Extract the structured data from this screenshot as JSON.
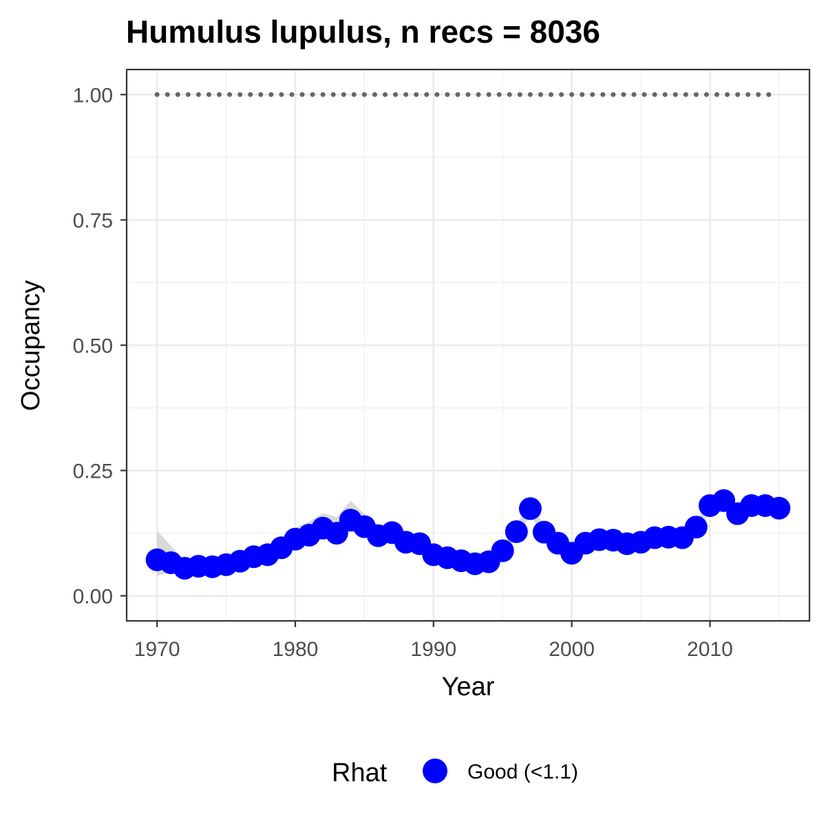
{
  "chart_data": {
    "type": "line",
    "title": "Humulus lupulus, n recs = 8036",
    "xlabel": "Year",
    "ylabel": "Occupancy",
    "xlim": [
      1967.8,
      2017.2
    ],
    "ylim": [
      -0.05,
      1.05
    ],
    "x_ticks": [
      1970,
      1980,
      1990,
      2000,
      2010
    ],
    "x_tick_labels": [
      "1970",
      "1980",
      "1990",
      "2000",
      "2010"
    ],
    "y_ticks": [
      0,
      0.25,
      0.5,
      0.75,
      1
    ],
    "y_tick_labels": [
      "0.00",
      "0.25",
      "0.50",
      "0.75",
      "1.00"
    ],
    "grid": true,
    "legend": {
      "title": "Rhat",
      "position": "bottom",
      "entries": [
        {
          "label": "Good (<1.1)",
          "color": "#0000ff"
        }
      ]
    },
    "series": [
      {
        "name": "Good (<1.1)",
        "geom": "point",
        "color": "#0000ff",
        "x": [
          1970,
          1971,
          1972,
          1973,
          1974,
          1975,
          1976,
          1977,
          1978,
          1979,
          1980,
          1981,
          1982,
          1983,
          1984,
          1985,
          1986,
          1987,
          1988,
          1989,
          1990,
          1991,
          1992,
          1993,
          1994,
          1995,
          1996,
          1997,
          1998,
          1999,
          2000,
          2001,
          2002,
          2003,
          2004,
          2005,
          2006,
          2007,
          2008,
          2009,
          2010,
          2011,
          2012,
          2013,
          2014,
          2015
        ],
        "y": [
          0.072,
          0.066,
          0.055,
          0.059,
          0.058,
          0.062,
          0.069,
          0.078,
          0.082,
          0.096,
          0.113,
          0.121,
          0.135,
          0.125,
          0.151,
          0.138,
          0.12,
          0.126,
          0.107,
          0.104,
          0.082,
          0.076,
          0.07,
          0.064,
          0.068,
          0.09,
          0.128,
          0.174,
          0.127,
          0.105,
          0.085,
          0.105,
          0.112,
          0.111,
          0.104,
          0.107,
          0.116,
          0.117,
          0.116,
          0.137,
          0.18,
          0.19,
          0.164,
          0.18,
          0.18,
          0.175
        ]
      },
      {
        "name": "credible interval",
        "geom": "ribbon",
        "color": "#d3d3d3",
        "x": [
          1970,
          1971,
          1972,
          1973,
          1974,
          1975,
          1976,
          1977,
          1978,
          1979,
          1980,
          1981,
          1982,
          1983,
          1984,
          1985,
          1986,
          1987,
          1988,
          1989,
          1990,
          1991,
          1992,
          1993,
          1994,
          1995,
          1996,
          1997,
          1998,
          1999,
          2000,
          2001,
          2002,
          2003,
          2004,
          2005,
          2006,
          2007,
          2008,
          2009,
          2010,
          2011,
          2012,
          2013,
          2014,
          2015
        ],
        "lower": [
          0.04,
          0.047,
          0.045,
          0.049,
          0.048,
          0.051,
          0.058,
          0.066,
          0.07,
          0.084,
          0.1,
          0.108,
          0.118,
          0.11,
          0.128,
          0.124,
          0.108,
          0.113,
          0.095,
          0.092,
          0.072,
          0.067,
          0.062,
          0.057,
          0.06,
          0.08,
          0.116,
          0.162,
          0.116,
          0.094,
          0.076,
          0.095,
          0.101,
          0.1,
          0.094,
          0.097,
          0.105,
          0.106,
          0.105,
          0.125,
          0.168,
          0.178,
          0.153,
          0.168,
          0.168,
          0.163
        ],
        "upper": [
          0.13,
          0.1,
          0.07,
          0.07,
          0.068,
          0.074,
          0.082,
          0.09,
          0.094,
          0.11,
          0.136,
          0.148,
          0.165,
          0.157,
          0.19,
          0.163,
          0.14,
          0.14,
          0.12,
          0.117,
          0.093,
          0.086,
          0.079,
          0.072,
          0.077,
          0.101,
          0.141,
          0.187,
          0.139,
          0.117,
          0.096,
          0.116,
          0.123,
          0.122,
          0.115,
          0.118,
          0.127,
          0.128,
          0.127,
          0.15,
          0.193,
          0.203,
          0.176,
          0.193,
          0.193,
          0.188
        ]
      },
      {
        "name": "reference",
        "geom": "dotted-line",
        "color": "#666666",
        "x": [
          1970,
          2015
        ],
        "y": [
          1,
          1
        ]
      }
    ]
  }
}
